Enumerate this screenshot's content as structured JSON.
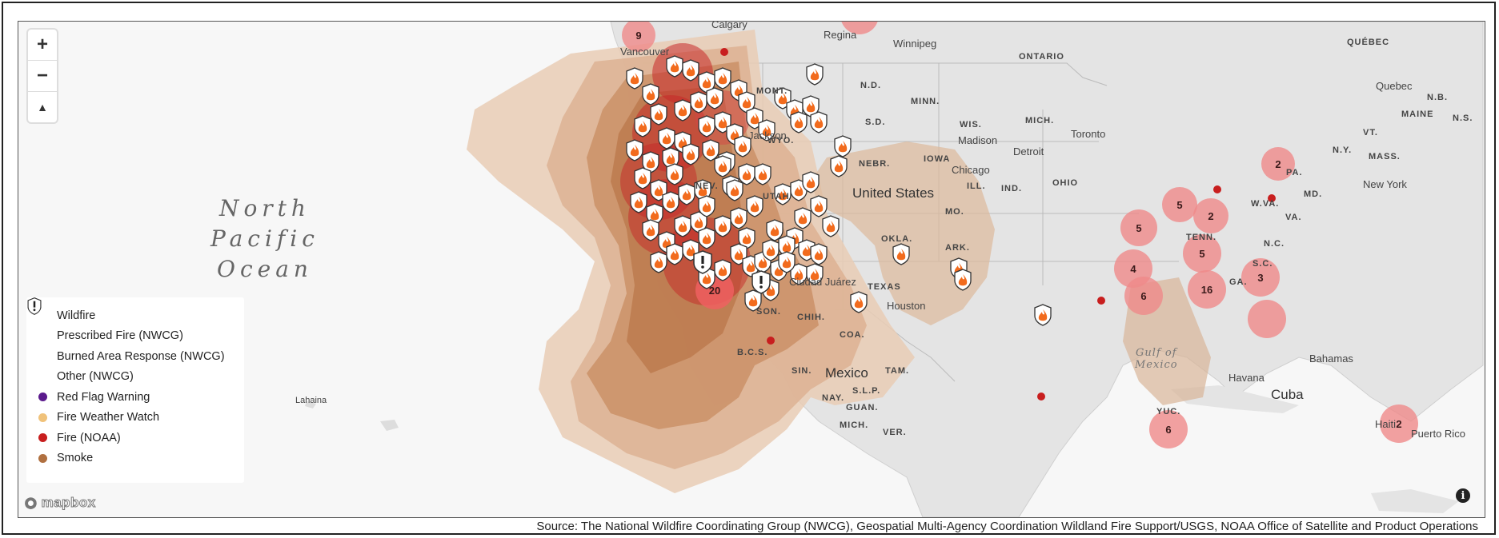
{
  "map": {
    "ocean_label": [
      "North",
      "Pacific",
      "Ocean"
    ],
    "gulf_label": [
      "Gulf of",
      "Mexico"
    ],
    "country_labels": [
      "United States",
      "Mexico",
      "Cuba"
    ],
    "state_labels": [
      "N.D.",
      "MINN.",
      "S.D.",
      "WYO.",
      "NEBR.",
      "IOWA",
      "WIS.",
      "MICH.",
      "ILL.",
      "IND.",
      "OHIO",
      "PA.",
      "N.Y.",
      "VT.",
      "MASS.",
      "MAINE",
      "N.S.",
      "N.B.",
      "ONTARIO",
      "QUÉBEC",
      "MONT.",
      "NEV.",
      "UTAH",
      "MO.",
      "ARK.",
      "TENN.",
      "N.C.",
      "S.C.",
      "GA.",
      "W.VA.",
      "VA.",
      "MD.",
      "OKLA.",
      "TEXAS",
      "CHIH.",
      "SON.",
      "B.C.S.",
      "COA.",
      "SIN.",
      "TAM.",
      "NAY.",
      "S.L.P.",
      "GUAN.",
      "MICH.",
      "YUC.",
      "VER."
    ],
    "city_labels": [
      "Calgary",
      "Regina",
      "Winnipeg",
      "Vancouver",
      "Jackson",
      "Chicago",
      "Detroit",
      "Toronto",
      "Madison",
      "Quebec",
      "New York",
      "Houston",
      "Ciudad Juárez",
      "Havana",
      "Bahamas",
      "Lahaina",
      "Haiti",
      "Puerto Rico"
    ],
    "cluster_counts": [
      "9",
      "2",
      "5",
      "2",
      "5",
      "4",
      "6",
      "5",
      "16",
      "3",
      "20",
      "6",
      "2"
    ]
  },
  "zoom": {
    "in_label": "+",
    "out_label": "−",
    "compass_label": "▲"
  },
  "legend": {
    "items": [
      {
        "label": "Wildfire",
        "icon": "wildfire-shield-icon"
      },
      {
        "label": "Prescribed Fire (NWCG)",
        "icon": "prescribed-fire-shield-icon"
      },
      {
        "label": "Burned Area Response (NWCG)",
        "icon": "burned-area-shield-icon"
      },
      {
        "label": "Other (NWCG)",
        "icon": "other-shield-icon"
      },
      {
        "label": "Red Flag Warning",
        "color": "#5b1a8c"
      },
      {
        "label": "Fire Weather Watch",
        "color": "#f0c27a"
      },
      {
        "label": "Fire (NOAA)",
        "color": "#c81e1e"
      },
      {
        "label": "Smoke",
        "color": "#b07040"
      }
    ]
  },
  "branding": {
    "logo_text": "mapbox",
    "info_label": "i"
  },
  "source_text": "Source: The National Wildfire Coordinating Group (NWCG), Geospatial Multi-Agency Coordination Wildland Fire Support/USGS, NOAA Office of Satellite and Product Operations"
}
